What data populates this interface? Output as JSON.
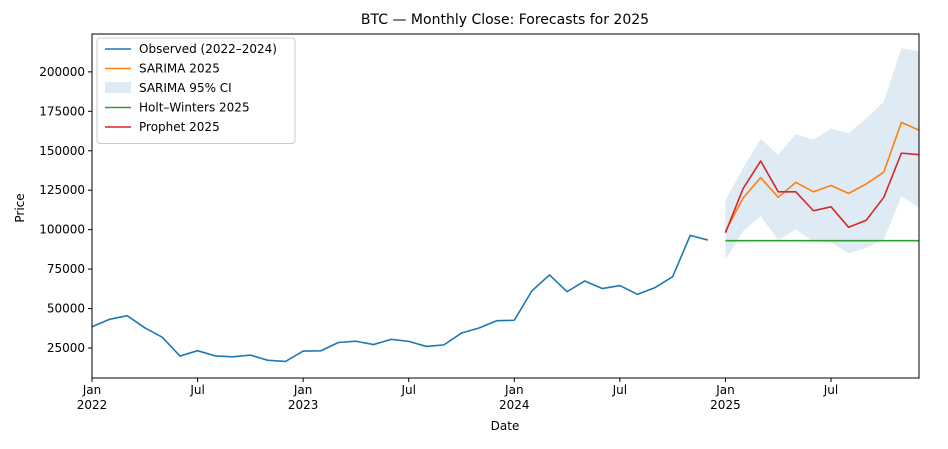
{
  "chart_data": {
    "type": "line",
    "title": "BTC — Monthly Close: Forecasts for 2025",
    "xlabel": "Date",
    "ylabel": "Price",
    "xlim": [
      "2022-01",
      "2025-12"
    ],
    "ylim": [
      6000,
      224000
    ],
    "x_ticks": [
      {
        "x": "2022-01",
        "label": "Jan",
        "sublabel": "2022"
      },
      {
        "x": "2022-07",
        "label": "Jul",
        "sublabel": ""
      },
      {
        "x": "2023-01",
        "label": "Jan",
        "sublabel": "2023"
      },
      {
        "x": "2023-07",
        "label": "Jul",
        "sublabel": ""
      },
      {
        "x": "2024-01",
        "label": "Jan",
        "sublabel": "2024"
      },
      {
        "x": "2024-07",
        "label": "Jul",
        "sublabel": ""
      },
      {
        "x": "2025-01",
        "label": "Jan",
        "sublabel": "2025"
      },
      {
        "x": "2025-07",
        "label": "Jul",
        "sublabel": ""
      }
    ],
    "y_ticks": [
      25000,
      50000,
      75000,
      100000,
      125000,
      150000,
      175000,
      200000
    ],
    "grid": false,
    "legend_position": "top-left",
    "series": [
      {
        "name": "Observed (2022–2024)",
        "color": "#1f77b4",
        "x": [
          "2022-01",
          "2022-02",
          "2022-03",
          "2022-04",
          "2022-05",
          "2022-06",
          "2022-07",
          "2022-08",
          "2022-09",
          "2022-10",
          "2022-11",
          "2022-12",
          "2023-01",
          "2023-02",
          "2023-03",
          "2023-04",
          "2023-05",
          "2023-06",
          "2023-07",
          "2023-08",
          "2023-09",
          "2023-10",
          "2023-11",
          "2023-12",
          "2024-01",
          "2024-02",
          "2024-03",
          "2024-04",
          "2024-05",
          "2024-06",
          "2024-07",
          "2024-08",
          "2024-09",
          "2024-10",
          "2024-11",
          "2024-12"
        ],
        "values": [
          38500,
          43200,
          45500,
          37800,
          31800,
          19900,
          23300,
          20000,
          19400,
          20500,
          17200,
          16500,
          23100,
          23200,
          28500,
          29300,
          27200,
          30500,
          29200,
          26000,
          27000,
          34500,
          37700,
          42300,
          42600,
          61200,
          71300,
          60700,
          67500,
          62700,
          64600,
          59000,
          63300,
          70200,
          96400,
          93400
        ]
      },
      {
        "name": "SARIMA 2025",
        "color": "#ff7f0e",
        "x": [
          "2025-01",
          "2025-02",
          "2025-03",
          "2025-04",
          "2025-05",
          "2025-06",
          "2025-07",
          "2025-08",
          "2025-09",
          "2025-10",
          "2025-11",
          "2025-12"
        ],
        "values": [
          99000,
          120000,
          133000,
          120500,
          130000,
          124000,
          128000,
          123000,
          129000,
          136500,
          168000,
          163000
        ]
      },
      {
        "name": "Holt–Winters 2025",
        "color": "#2ca02c",
        "x": [
          "2025-01",
          "2025-02",
          "2025-03",
          "2025-04",
          "2025-05",
          "2025-06",
          "2025-07",
          "2025-08",
          "2025-09",
          "2025-10",
          "2025-11",
          "2025-12"
        ],
        "values": [
          93000,
          93000,
          93000,
          93000,
          93000,
          93000,
          93000,
          93000,
          93000,
          93000,
          93000,
          93000
        ]
      },
      {
        "name": "Prophet 2025",
        "color": "#d62728",
        "x": [
          "2025-01",
          "2025-02",
          "2025-03",
          "2025-04",
          "2025-05",
          "2025-06",
          "2025-07",
          "2025-08",
          "2025-09",
          "2025-10",
          "2025-11",
          "2025-12"
        ],
        "values": [
          98000,
          126000,
          143500,
          124000,
          124000,
          112000,
          114500,
          101500,
          106000,
          120500,
          148500,
          147500
        ]
      }
    ],
    "bands": [
      {
        "name": "SARIMA 95% CI",
        "color": "#1f77b4",
        "opacity": 0.15,
        "x": [
          "2025-01",
          "2025-02",
          "2025-03",
          "2025-04",
          "2025-05",
          "2025-06",
          "2025-07",
          "2025-08",
          "2025-09",
          "2025-10",
          "2025-11",
          "2025-12"
        ],
        "lower": [
          81000,
          99000,
          108500,
          93500,
          100000,
          92500,
          92000,
          85000,
          88500,
          94000,
          121000,
          114000
        ],
        "upper": [
          118500,
          139000,
          157500,
          147500,
          160500,
          157000,
          164000,
          161000,
          170500,
          181000,
          215000,
          213000
        ]
      }
    ],
    "legend_order": [
      "Observed (2022–2024)",
      "SARIMA 2025",
      "SARIMA 95% CI",
      "Holt–Winters 2025",
      "Prophet 2025"
    ]
  }
}
